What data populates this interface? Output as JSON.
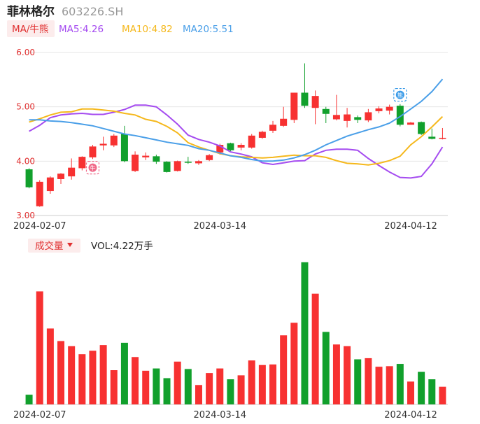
{
  "header": {
    "name": "菲林格尔",
    "code": "603226.SH"
  },
  "ma_legend": {
    "tag": "MA/牛熊",
    "items": [
      {
        "label": "MA5:4.26",
        "color": "#a54cf0"
      },
      {
        "label": "MA10:4.82",
        "color": "#f5b81c"
      },
      {
        "label": "MA20:5.51",
        "color": "#4a9fe8"
      }
    ]
  },
  "volume_legend": {
    "tag": "成交量",
    "label": "VOL:4.22万手"
  },
  "signals": {
    "bull": "牛",
    "bear": "熊"
  },
  "colors": {
    "up": "#f73131",
    "down": "#11a02c",
    "grid": "#e6e6e6",
    "axis_text": "#333333",
    "price_label": "#e03030",
    "tag_bg": "#fcecec"
  },
  "chart_data": {
    "type": "candlestick",
    "price_axis": {
      "ylim": [
        3.0,
        6.0
      ],
      "ticks": [
        "3.00",
        "4.00",
        "5.00",
        "6.00"
      ]
    },
    "x_ticks": [
      {
        "index": 1,
        "label": "2024-02-07"
      },
      {
        "index": 18,
        "label": "2024-03-14"
      },
      {
        "index": 36,
        "label": "2024-04-12"
      }
    ],
    "candles": [
      {
        "o": 3.85,
        "c": 3.52,
        "h": 3.87,
        "l": 3.5
      },
      {
        "o": 3.17,
        "c": 3.62,
        "h": 3.65,
        "l": 3.16
      },
      {
        "o": 3.45,
        "c": 3.7,
        "h": 3.72,
        "l": 3.4
      },
      {
        "o": 3.67,
        "c": 3.77,
        "h": 3.78,
        "l": 3.58
      },
      {
        "o": 3.72,
        "c": 3.88,
        "h": 4.05,
        "l": 3.66
      },
      {
        "o": 3.87,
        "c": 4.08,
        "h": 4.09,
        "l": 3.83
      },
      {
        "o": 4.07,
        "c": 4.27,
        "h": 4.3,
        "l": 4.04
      },
      {
        "o": 4.29,
        "c": 4.32,
        "h": 4.45,
        "l": 4.2
      },
      {
        "o": 4.29,
        "c": 4.47,
        "h": 4.5,
        "l": 4.26
      },
      {
        "o": 4.5,
        "c": 4.0,
        "h": 4.65,
        "l": 3.98
      },
      {
        "o": 3.82,
        "c": 4.12,
        "h": 4.18,
        "l": 3.8
      },
      {
        "o": 4.07,
        "c": 4.1,
        "h": 4.16,
        "l": 4.02
      },
      {
        "o": 4.09,
        "c": 3.99,
        "h": 4.12,
        "l": 3.95
      },
      {
        "o": 3.99,
        "c": 3.8,
        "h": 4.0,
        "l": 3.79
      },
      {
        "o": 3.82,
        "c": 4.0,
        "h": 4.01,
        "l": 3.81
      },
      {
        "o": 3.99,
        "c": 3.97,
        "h": 4.08,
        "l": 3.95
      },
      {
        "o": 3.96,
        "c": 4.0,
        "h": 4.02,
        "l": 3.93
      },
      {
        "o": 4.02,
        "c": 4.11,
        "h": 4.13,
        "l": 4.0
      },
      {
        "o": 4.16,
        "c": 4.3,
        "h": 4.32,
        "l": 4.12
      },
      {
        "o": 4.33,
        "c": 4.2,
        "h": 4.34,
        "l": 4.18
      },
      {
        "o": 4.25,
        "c": 4.3,
        "h": 4.33,
        "l": 4.2
      },
      {
        "o": 4.25,
        "c": 4.47,
        "h": 4.5,
        "l": 4.23
      },
      {
        "o": 4.43,
        "c": 4.54,
        "h": 4.56,
        "l": 4.41
      },
      {
        "o": 4.56,
        "c": 4.67,
        "h": 4.74,
        "l": 4.52
      },
      {
        "o": 4.65,
        "c": 4.78,
        "h": 5.0,
        "l": 4.63
      },
      {
        "o": 4.76,
        "c": 5.26,
        "h": 5.26,
        "l": 4.7
      },
      {
        "o": 5.26,
        "c": 5.02,
        "h": 5.8,
        "l": 4.98
      },
      {
        "o": 4.98,
        "c": 5.2,
        "h": 5.3,
        "l": 4.68
      },
      {
        "o": 4.96,
        "c": 4.87,
        "h": 5.0,
        "l": 4.7
      },
      {
        "o": 4.77,
        "c": 4.85,
        "h": 5.22,
        "l": 4.75
      },
      {
        "o": 4.74,
        "c": 4.86,
        "h": 4.98,
        "l": 4.62
      },
      {
        "o": 4.81,
        "c": 4.76,
        "h": 4.84,
        "l": 4.7
      },
      {
        "o": 4.75,
        "c": 4.9,
        "h": 4.96,
        "l": 4.72
      },
      {
        "o": 4.92,
        "c": 4.97,
        "h": 5.01,
        "l": 4.88
      },
      {
        "o": 4.93,
        "c": 5.0,
        "h": 5.04,
        "l": 4.86
      },
      {
        "o": 5.02,
        "c": 4.67,
        "h": 5.05,
        "l": 4.64
      },
      {
        "o": 4.67,
        "c": 4.71,
        "h": 4.72,
        "l": 4.68
      },
      {
        "o": 4.72,
        "c": 4.5,
        "h": 4.73,
        "l": 4.48
      },
      {
        "o": 4.45,
        "c": 4.41,
        "h": 4.6,
        "l": 4.4
      },
      {
        "o": 4.41,
        "c": 4.43,
        "h": 4.61,
        "l": 4.4
      }
    ],
    "ma5": [
      4.55,
      4.66,
      4.8,
      4.85,
      4.87,
      4.88,
      4.86,
      4.86,
      4.9,
      4.95,
      5.03,
      5.03,
      5.0,
      4.85,
      4.68,
      4.48,
      4.4,
      4.35,
      4.28,
      4.17,
      4.13,
      4.08,
      3.97,
      3.94,
      3.97,
      4.0,
      4.01,
      4.13,
      4.2,
      4.22,
      4.22,
      4.2,
      4.05,
      3.92,
      3.8,
      3.7,
      3.69,
      3.72,
      3.95,
      4.26
    ],
    "ma10": [
      4.72,
      4.78,
      4.85,
      4.9,
      4.91,
      4.96,
      4.96,
      4.94,
      4.92,
      4.88,
      4.85,
      4.77,
      4.73,
      4.64,
      4.52,
      4.34,
      4.26,
      4.2,
      4.14,
      4.1,
      4.08,
      4.07,
      4.06,
      4.07,
      4.09,
      4.11,
      4.1,
      4.1,
      4.07,
      4.01,
      3.96,
      3.95,
      3.93,
      3.96,
      4.01,
      4.09,
      4.3,
      4.45,
      4.63,
      4.82
    ],
    "ma20": [
      4.76,
      4.76,
      4.74,
      4.73,
      4.71,
      4.68,
      4.65,
      4.6,
      4.55,
      4.5,
      4.47,
      4.43,
      4.39,
      4.35,
      4.32,
      4.29,
      4.23,
      4.2,
      4.15,
      4.1,
      4.07,
      4.03,
      4.0,
      4.0,
      4.02,
      4.06,
      4.12,
      4.2,
      4.3,
      4.38,
      4.46,
      4.52,
      4.58,
      4.63,
      4.7,
      4.82,
      4.96,
      5.1,
      5.28,
      5.51
    ],
    "volume": [
      0.17,
      1.98,
      1.33,
      1.11,
      1.02,
      0.88,
      0.94,
      1.04,
      0.6,
      1.08,
      0.83,
      0.59,
      0.63,
      0.46,
      0.75,
      0.62,
      0.34,
      0.55,
      0.63,
      0.44,
      0.51,
      0.77,
      0.69,
      0.7,
      1.21,
      1.43,
      2.49,
      1.94,
      1.27,
      1.05,
      1.02,
      0.79,
      0.81,
      0.66,
      0.67,
      0.71,
      0.4,
      0.57,
      0.44,
      0.31
    ]
  }
}
